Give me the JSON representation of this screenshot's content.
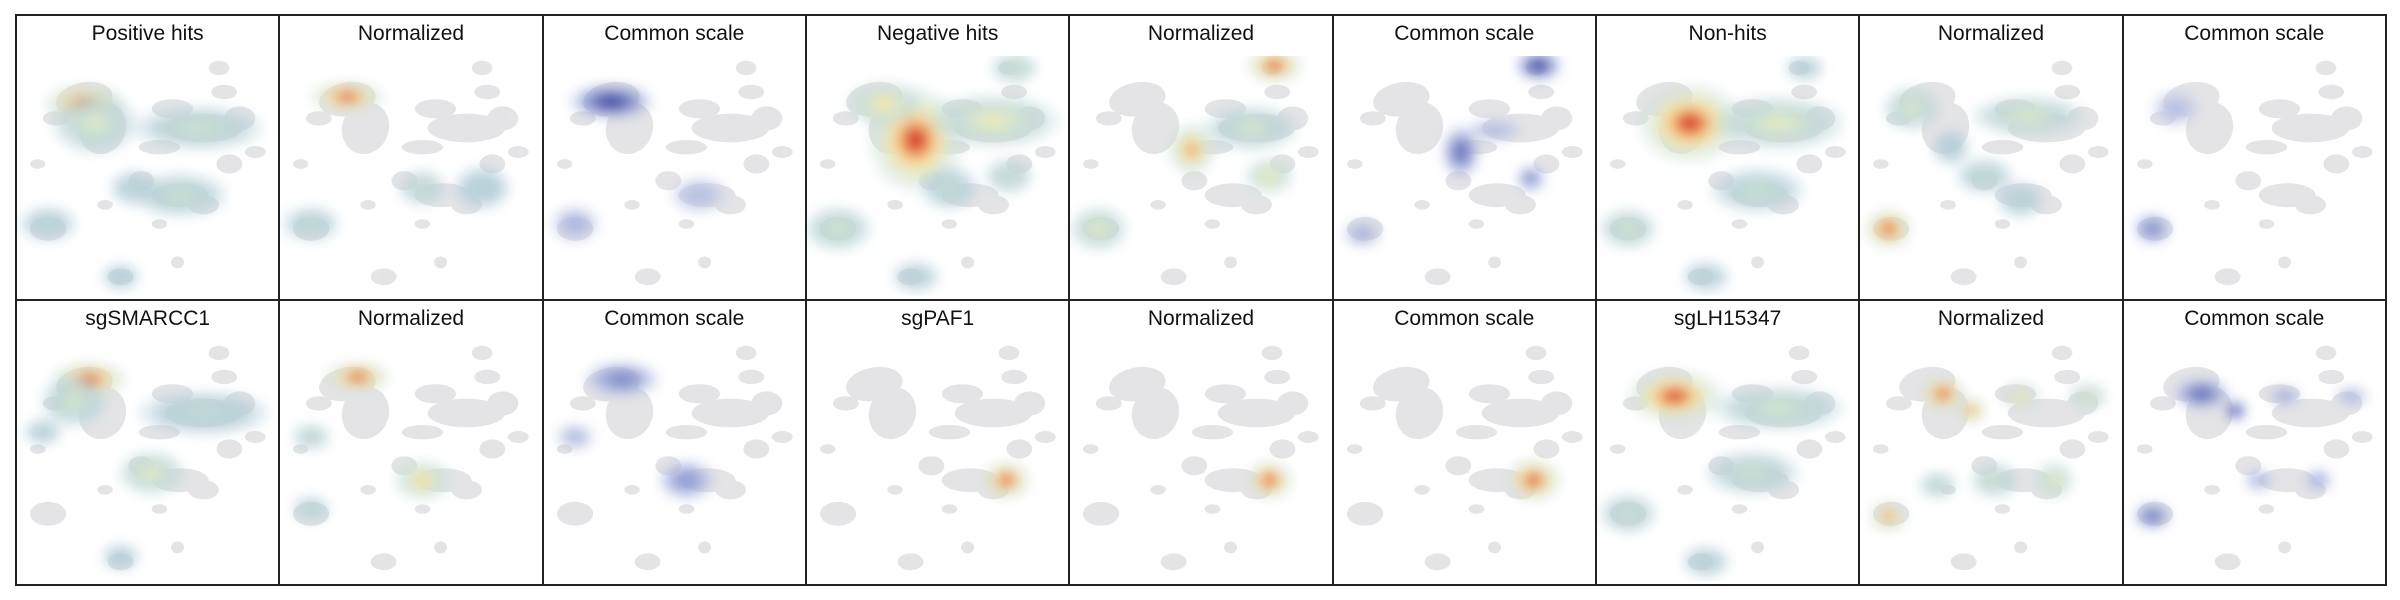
{
  "chart_data": {
    "type": "heatmap",
    "description": "density",
    "grid": false,
    "rows": [
      {
        "panels": [
          {
            "title": "Positive hits",
            "mode": "raw",
            "hotspots": [
              {
                "x": 0.26,
                "y": 0.2,
                "w": 0.085,
                "h": 0.045,
                "v": 1.0
              },
              {
                "x": 0.3,
                "y": 0.28,
                "w": 0.09,
                "h": 0.07,
                "v": 0.4
              },
              {
                "x": 0.7,
                "y": 0.3,
                "w": 0.14,
                "h": 0.05,
                "v": 0.3
              },
              {
                "x": 0.63,
                "y": 0.58,
                "w": 0.1,
                "h": 0.05,
                "v": 0.28
              },
              {
                "x": 0.45,
                "y": 0.55,
                "w": 0.05,
                "h": 0.04,
                "v": 0.2
              },
              {
                "x": 0.12,
                "y": 0.7,
                "w": 0.06,
                "h": 0.04,
                "v": 0.22
              },
              {
                "x": 0.4,
                "y": 0.92,
                "w": 0.04,
                "h": 0.03,
                "v": 0.15
              }
            ]
          },
          {
            "title": "Normalized",
            "mode": "norm",
            "hotspots": [
              {
                "x": 0.26,
                "y": 0.17,
                "w": 0.08,
                "h": 0.035,
                "v": 1.0
              },
              {
                "x": 0.55,
                "y": 0.55,
                "w": 0.05,
                "h": 0.04,
                "v": 0.3
              },
              {
                "x": 0.12,
                "y": 0.7,
                "w": 0.06,
                "h": 0.04,
                "v": 0.25
              },
              {
                "x": 0.78,
                "y": 0.55,
                "w": 0.06,
                "h": 0.05,
                "v": 0.15
              }
            ]
          },
          {
            "title": "Common scale",
            "mode": "common",
            "hotspots": [
              {
                "x": 0.26,
                "y": 0.19,
                "w": 0.09,
                "h": 0.04,
                "v": 1.0
              },
              {
                "x": 0.12,
                "y": 0.7,
                "w": 0.05,
                "h": 0.04,
                "v": 0.25
              },
              {
                "x": 0.6,
                "y": 0.58,
                "w": 0.06,
                "h": 0.04,
                "v": 0.15
              }
            ]
          },
          {
            "title": "Negative hits",
            "mode": "raw",
            "hotspots": [
              {
                "x": 0.42,
                "y": 0.35,
                "w": 0.1,
                "h": 0.12,
                "v": 1.0
              },
              {
                "x": 0.3,
                "y": 0.2,
                "w": 0.08,
                "h": 0.05,
                "v": 0.6
              },
              {
                "x": 0.72,
                "y": 0.27,
                "w": 0.14,
                "h": 0.06,
                "v": 0.5
              },
              {
                "x": 0.8,
                "y": 0.05,
                "w": 0.05,
                "h": 0.035,
                "v": 0.35
              },
              {
                "x": 0.78,
                "y": 0.5,
                "w": 0.05,
                "h": 0.04,
                "v": 0.3
              },
              {
                "x": 0.55,
                "y": 0.55,
                "w": 0.06,
                "h": 0.05,
                "v": 0.25
              },
              {
                "x": 0.12,
                "y": 0.72,
                "w": 0.07,
                "h": 0.05,
                "v": 0.35
              },
              {
                "x": 0.42,
                "y": 0.92,
                "w": 0.05,
                "h": 0.035,
                "v": 0.2
              }
            ]
          },
          {
            "title": "Normalized",
            "mode": "norm",
            "hotspots": [
              {
                "x": 0.79,
                "y": 0.04,
                "w": 0.06,
                "h": 0.04,
                "v": 1.0
              },
              {
                "x": 0.47,
                "y": 0.39,
                "w": 0.05,
                "h": 0.06,
                "v": 0.8
              },
              {
                "x": 0.7,
                "y": 0.3,
                "w": 0.1,
                "h": 0.05,
                "v": 0.35
              },
              {
                "x": 0.77,
                "y": 0.5,
                "w": 0.05,
                "h": 0.04,
                "v": 0.55
              },
              {
                "x": 0.11,
                "y": 0.72,
                "w": 0.06,
                "h": 0.05,
                "v": 0.45
              }
            ]
          },
          {
            "title": "Common scale",
            "mode": "common",
            "hotspots": [
              {
                "x": 0.79,
                "y": 0.04,
                "w": 0.05,
                "h": 0.035,
                "v": 1.0
              },
              {
                "x": 0.49,
                "y": 0.4,
                "w": 0.04,
                "h": 0.06,
                "v": 0.75
              },
              {
                "x": 0.76,
                "y": 0.51,
                "w": 0.03,
                "h": 0.03,
                "v": 0.6
              },
              {
                "x": 0.11,
                "y": 0.74,
                "w": 0.04,
                "h": 0.03,
                "v": 0.3
              },
              {
                "x": 0.62,
                "y": 0.31,
                "w": 0.06,
                "h": 0.025,
                "v": 0.2
              }
            ]
          },
          {
            "title": "Non-hits",
            "mode": "raw",
            "hotspots": [
              {
                "x": 0.36,
                "y": 0.28,
                "w": 0.11,
                "h": 0.09,
                "v": 1.0
              },
              {
                "x": 0.7,
                "y": 0.28,
                "w": 0.14,
                "h": 0.06,
                "v": 0.45
              },
              {
                "x": 0.62,
                "y": 0.56,
                "w": 0.1,
                "h": 0.05,
                "v": 0.28
              },
              {
                "x": 0.12,
                "y": 0.72,
                "w": 0.06,
                "h": 0.045,
                "v": 0.35
              },
              {
                "x": 0.8,
                "y": 0.05,
                "w": 0.04,
                "h": 0.03,
                "v": 0.2
              },
              {
                "x": 0.42,
                "y": 0.92,
                "w": 0.05,
                "h": 0.035,
                "v": 0.2
              }
            ]
          },
          {
            "title": "Normalized",
            "mode": "norm",
            "hotspots": [
              {
                "x": 0.11,
                "y": 0.72,
                "w": 0.05,
                "h": 0.045,
                "v": 1.0
              },
              {
                "x": 0.2,
                "y": 0.22,
                "w": 0.06,
                "h": 0.05,
                "v": 0.4
              },
              {
                "x": 0.65,
                "y": 0.25,
                "w": 0.12,
                "h": 0.045,
                "v": 0.4
              },
              {
                "x": 0.48,
                "y": 0.5,
                "w": 0.06,
                "h": 0.04,
                "v": 0.25
              },
              {
                "x": 0.62,
                "y": 0.6,
                "w": 0.05,
                "h": 0.04,
                "v": 0.2
              },
              {
                "x": 0.35,
                "y": 0.38,
                "w": 0.04,
                "h": 0.04,
                "v": 0.15
              }
            ]
          },
          {
            "title": "Common scale",
            "mode": "common",
            "hotspots": [
              {
                "x": 0.11,
                "y": 0.72,
                "w": 0.04,
                "h": 0.035,
                "v": 0.6
              },
              {
                "x": 0.2,
                "y": 0.22,
                "w": 0.05,
                "h": 0.04,
                "v": 0.15
              }
            ]
          }
        ]
      },
      {
        "panels": [
          {
            "title": "sgSMARCC1",
            "mode": "raw",
            "hotspots": [
              {
                "x": 0.28,
                "y": 0.16,
                "w": 0.08,
                "h": 0.04,
                "v": 1.0
              },
              {
                "x": 0.22,
                "y": 0.25,
                "w": 0.07,
                "h": 0.06,
                "v": 0.35
              },
              {
                "x": 0.72,
                "y": 0.3,
                "w": 0.14,
                "h": 0.05,
                "v": 0.22
              },
              {
                "x": 0.52,
                "y": 0.55,
                "w": 0.07,
                "h": 0.05,
                "v": 0.45
              },
              {
                "x": 0.1,
                "y": 0.38,
                "w": 0.04,
                "h": 0.03,
                "v": 0.18
              },
              {
                "x": 0.4,
                "y": 0.9,
                "w": 0.04,
                "h": 0.03,
                "v": 0.15
              }
            ]
          },
          {
            "title": "Normalized",
            "mode": "norm",
            "hotspots": [
              {
                "x": 0.3,
                "y": 0.15,
                "w": 0.07,
                "h": 0.035,
                "v": 1.0
              },
              {
                "x": 0.55,
                "y": 0.58,
                "w": 0.06,
                "h": 0.045,
                "v": 0.65
              },
              {
                "x": 0.12,
                "y": 0.4,
                "w": 0.04,
                "h": 0.03,
                "v": 0.3
              },
              {
                "x": 0.12,
                "y": 0.7,
                "w": 0.04,
                "h": 0.03,
                "v": 0.25
              }
            ]
          },
          {
            "title": "Common scale",
            "mode": "common",
            "hotspots": [
              {
                "x": 0.3,
                "y": 0.16,
                "w": 0.08,
                "h": 0.04,
                "v": 0.6
              },
              {
                "x": 0.55,
                "y": 0.58,
                "w": 0.06,
                "h": 0.045,
                "v": 0.5
              },
              {
                "x": 0.12,
                "y": 0.4,
                "w": 0.04,
                "h": 0.03,
                "v": 0.2
              }
            ]
          },
          {
            "title": "sgPAF1",
            "mode": "raw",
            "hotspots": [
              {
                "x": 0.77,
                "y": 0.58,
                "w": 0.05,
                "h": 0.045,
                "v": 1.0
              }
            ]
          },
          {
            "title": "Normalized",
            "mode": "norm",
            "hotspots": [
              {
                "x": 0.77,
                "y": 0.58,
                "w": 0.05,
                "h": 0.045,
                "v": 1.0
              }
            ]
          },
          {
            "title": "Common scale",
            "mode": "raw",
            "hotspots": [
              {
                "x": 0.77,
                "y": 0.58,
                "w": 0.06,
                "h": 0.05,
                "v": 1.0
              }
            ]
          },
          {
            "title": "sgLH15347",
            "mode": "raw",
            "hotspots": [
              {
                "x": 0.3,
                "y": 0.23,
                "w": 0.1,
                "h": 0.06,
                "v": 1.0
              },
              {
                "x": 0.7,
                "y": 0.28,
                "w": 0.14,
                "h": 0.05,
                "v": 0.35
              },
              {
                "x": 0.6,
                "y": 0.55,
                "w": 0.1,
                "h": 0.05,
                "v": 0.3
              },
              {
                "x": 0.12,
                "y": 0.72,
                "w": 0.06,
                "h": 0.045,
                "v": 0.3
              },
              {
                "x": 0.42,
                "y": 0.92,
                "w": 0.05,
                "h": 0.035,
                "v": 0.2
              }
            ]
          },
          {
            "title": "Normalized",
            "mode": "norm",
            "hotspots": [
              {
                "x": 0.32,
                "y": 0.22,
                "w": 0.05,
                "h": 0.04,
                "v": 1.0
              },
              {
                "x": 0.43,
                "y": 0.29,
                "w": 0.03,
                "h": 0.03,
                "v": 0.9
              },
              {
                "x": 0.62,
                "y": 0.23,
                "w": 0.04,
                "h": 0.03,
                "v": 0.6
              },
              {
                "x": 0.88,
                "y": 0.23,
                "w": 0.04,
                "h": 0.03,
                "v": 0.45
              },
              {
                "x": 0.11,
                "y": 0.73,
                "w": 0.04,
                "h": 0.035,
                "v": 0.85
              },
              {
                "x": 0.52,
                "y": 0.58,
                "w": 0.05,
                "h": 0.04,
                "v": 0.35
              },
              {
                "x": 0.75,
                "y": 0.58,
                "w": 0.04,
                "h": 0.04,
                "v": 0.5
              },
              {
                "x": 0.3,
                "y": 0.6,
                "w": 0.04,
                "h": 0.03,
                "v": 0.3
              }
            ]
          },
          {
            "title": "Common scale",
            "mode": "common",
            "hotspots": [
              {
                "x": 0.3,
                "y": 0.22,
                "w": 0.06,
                "h": 0.035,
                "v": 0.8
              },
              {
                "x": 0.43,
                "y": 0.29,
                "w": 0.025,
                "h": 0.025,
                "v": 1.0
              },
              {
                "x": 0.62,
                "y": 0.23,
                "w": 0.035,
                "h": 0.02,
                "v": 0.4
              },
              {
                "x": 0.88,
                "y": 0.23,
                "w": 0.035,
                "h": 0.02,
                "v": 0.3
              },
              {
                "x": 0.11,
                "y": 0.73,
                "w": 0.04,
                "h": 0.03,
                "v": 0.75
              },
              {
                "x": 0.52,
                "y": 0.58,
                "w": 0.03,
                "h": 0.025,
                "v": 0.25
              },
              {
                "x": 0.75,
                "y": 0.58,
                "w": 0.03,
                "h": 0.025,
                "v": 0.35
              }
            ]
          }
        ]
      }
    ]
  }
}
